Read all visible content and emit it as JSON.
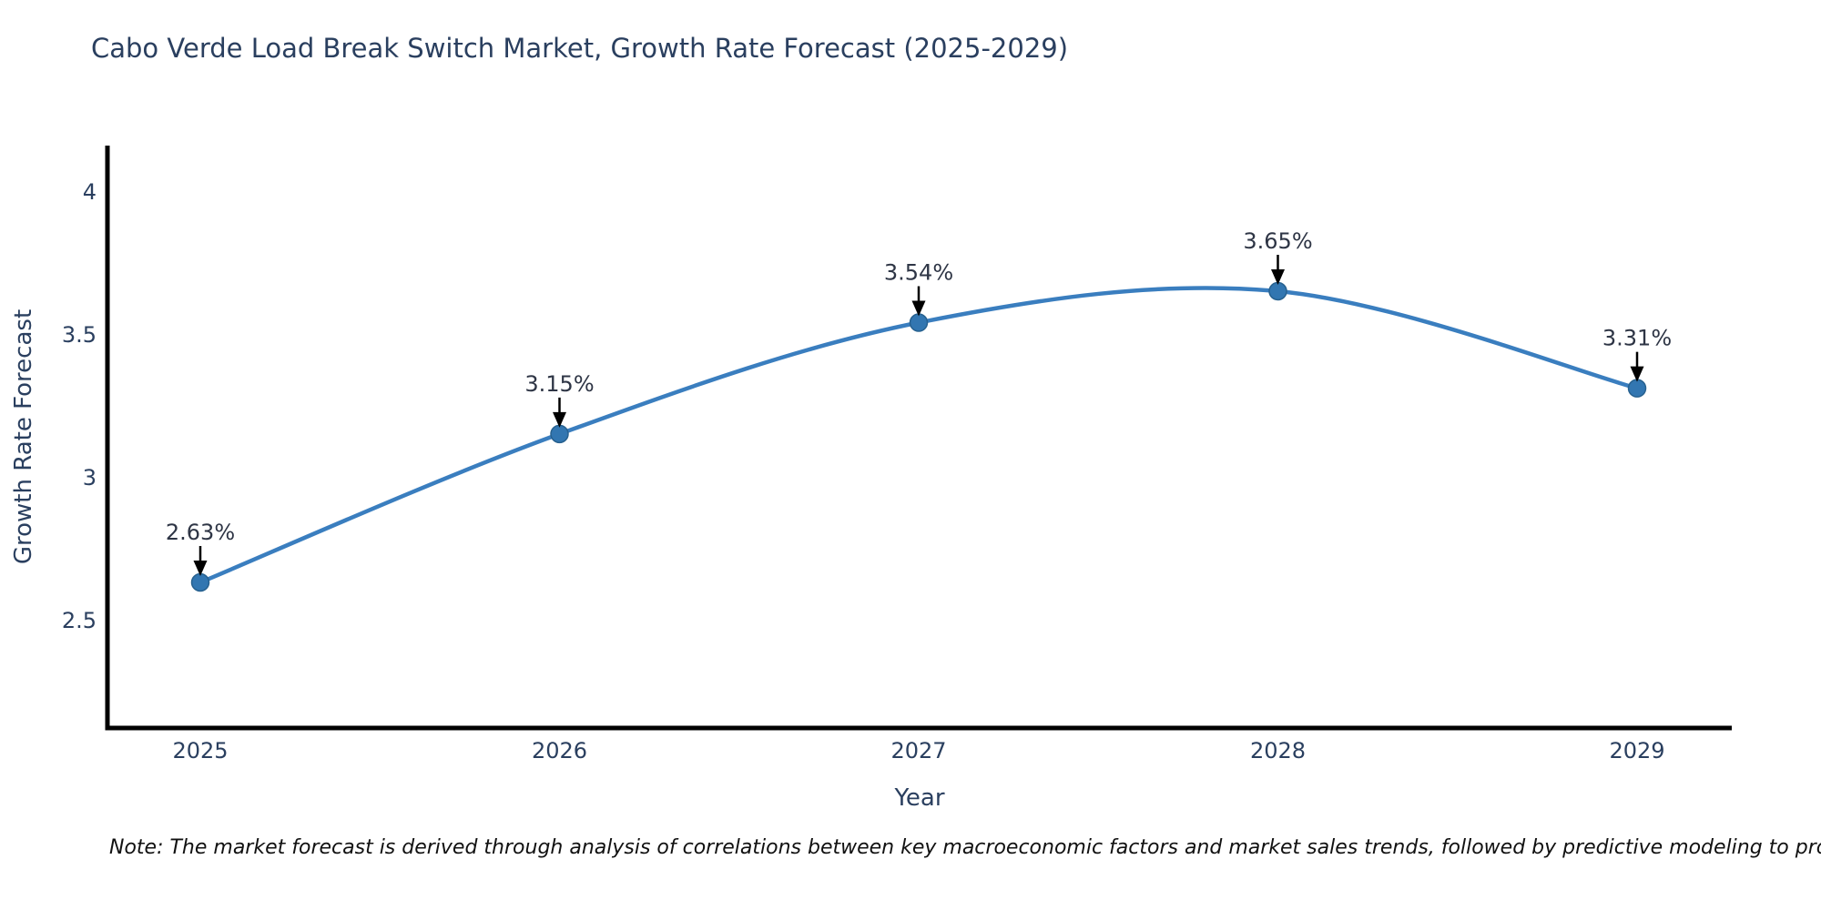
{
  "title": "Cabo Verde Load Break Switch Market, Growth Rate Forecast (2025-2029)",
  "note": "Note: The market forecast is derived through analysis of correlations between key macroeconomic factors and market sales trends, followed by predictive modeling to project future sales",
  "chart_data": {
    "type": "line",
    "title": "Cabo Verde Load Break Switch Market, Growth Rate Forecast (2025-2029)",
    "xlabel": "Year",
    "ylabel": "Growth Rate Forecast",
    "x": [
      2025,
      2026,
      2027,
      2028,
      2029
    ],
    "values": [
      2.63,
      3.15,
      3.54,
      3.65,
      3.31
    ],
    "point_labels": [
      "2.63%",
      "3.15%",
      "3.54%",
      "3.65%",
      "3.31%"
    ],
    "yticks": [
      2.5,
      3,
      3.5,
      4
    ],
    "ylim": [
      2.12,
      4.16
    ],
    "grid": false,
    "legend": "none",
    "curve": "smooth",
    "colors": {
      "line": "#3a7ebf",
      "marker_fill": "#3276b1",
      "marker_edge": "#27618f",
      "axis": "#000000",
      "annotation_arrow": "#000000",
      "text": "#2a3f5f"
    }
  }
}
